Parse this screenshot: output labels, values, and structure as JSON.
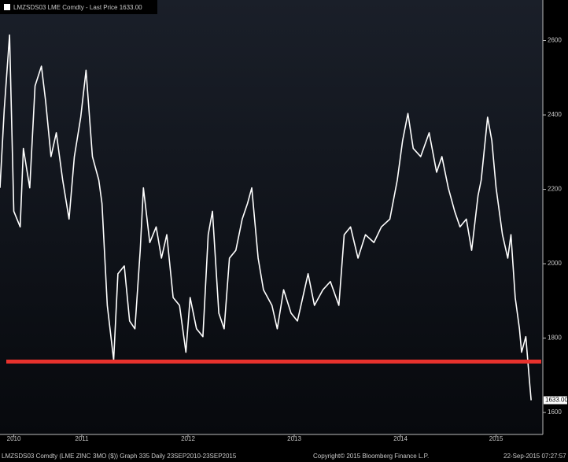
{
  "chart_data": {
    "type": "line",
    "title": "LMZSDS03 LME Comdty - Last Price 1633.00",
    "x": [
      2010.73,
      2010.77,
      2010.82,
      2010.86,
      2010.92,
      2010.95,
      2011.01,
      2011.06,
      2011.12,
      2011.16,
      2011.21,
      2011.26,
      2011.32,
      2011.38,
      2011.43,
      2011.49,
      2011.54,
      2011.6,
      2011.66,
      2011.69,
      2011.74,
      2011.8,
      2011.84,
      2011.9,
      2011.95,
      2012.0,
      2012.05,
      2012.08,
      2012.14,
      2012.2,
      2012.25,
      2012.3,
      2012.36,
      2012.42,
      2012.48,
      2012.52,
      2012.58,
      2012.64,
      2012.69,
      2012.73,
      2012.79,
      2012.84,
      2012.89,
      2012.95,
      2013.01,
      2013.06,
      2013.1,
      2013.16,
      2013.21,
      2013.29,
      2013.34,
      2013.4,
      2013.47,
      2013.53,
      2013.58,
      2013.63,
      2013.69,
      2013.77,
      2013.84,
      2013.92,
      2013.97,
      2014.03,
      2014.1,
      2014.17,
      2014.25,
      2014.32,
      2014.4,
      2014.47,
      2014.52,
      2014.57,
      2014.62,
      2014.69,
      2014.77,
      2014.84,
      2014.89,
      2014.95,
      2015.01,
      2015.06,
      2015.12,
      2015.17,
      2015.23,
      2015.26,
      2015.32,
      2015.36,
      2015.4,
      2015.46,
      2015.51,
      2015.54,
      2015.58,
      2015.62,
      2015.64,
      2015.68,
      2015.71,
      2015.73
    ],
    "series": [
      {
        "name": "LMZSDS03 LME Comdty",
        "color": "#ffffff",
        "values": [
          2204,
          2415,
          2615,
          2141,
          2099,
          2310,
          2204,
          2478,
          2531,
          2436,
          2288,
          2352,
          2225,
          2120,
          2288,
          2394,
          2520,
          2288,
          2225,
          2162,
          1888,
          1741,
          1973,
          1994,
          1846,
          1825,
          2036,
          2204,
          2057,
          2099,
          2015,
          2078,
          1909,
          1888,
          1762,
          1909,
          1825,
          1804,
          2078,
          2141,
          1867,
          1825,
          2015,
          2036,
          2120,
          2162,
          2204,
          2015,
          1930,
          1888,
          1825,
          1930,
          1867,
          1846,
          1909,
          1973,
          1888,
          1930,
          1952,
          1888,
          2078,
          2099,
          2015,
          2078,
          2057,
          2099,
          2120,
          2225,
          2331,
          2404,
          2310,
          2288,
          2352,
          2246,
          2288,
          2204,
          2141,
          2099,
          2120,
          2036,
          2183,
          2225,
          2394,
          2331,
          2204,
          2078,
          2015,
          2078,
          1909,
          1825,
          1762,
          1804,
          1699,
          1633
        ]
      }
    ],
    "last_label": "1633.00",
    "hline": {
      "value": 1737,
      "color": "#e8322d"
    },
    "xlim": [
      2010.73,
      2015.84
    ],
    "xticks": [
      {
        "value": 2010.86,
        "label": "2010"
      },
      {
        "value": 2011.5,
        "label": "2011"
      },
      {
        "value": 2012.5,
        "label": "2012"
      },
      {
        "value": 2013.5,
        "label": "2013"
      },
      {
        "value": 2014.5,
        "label": "2014"
      },
      {
        "value": 2015.4,
        "label": "2015"
      }
    ],
    "ylim": [
      1541,
      2709
    ],
    "yticks": [
      1600,
      1800,
      2000,
      2200,
      2400,
      2600
    ],
    "footer": [
      "LMZSDS03 Comdty (LME ZINC",
      "3MO ($)) Graph 335  Daily 23SEP2010-23SEP2015",
      "Copyright© 2015 Bloomberg Finance L.P.",
      "22-Sep-2015 07:27:57"
    ]
  }
}
